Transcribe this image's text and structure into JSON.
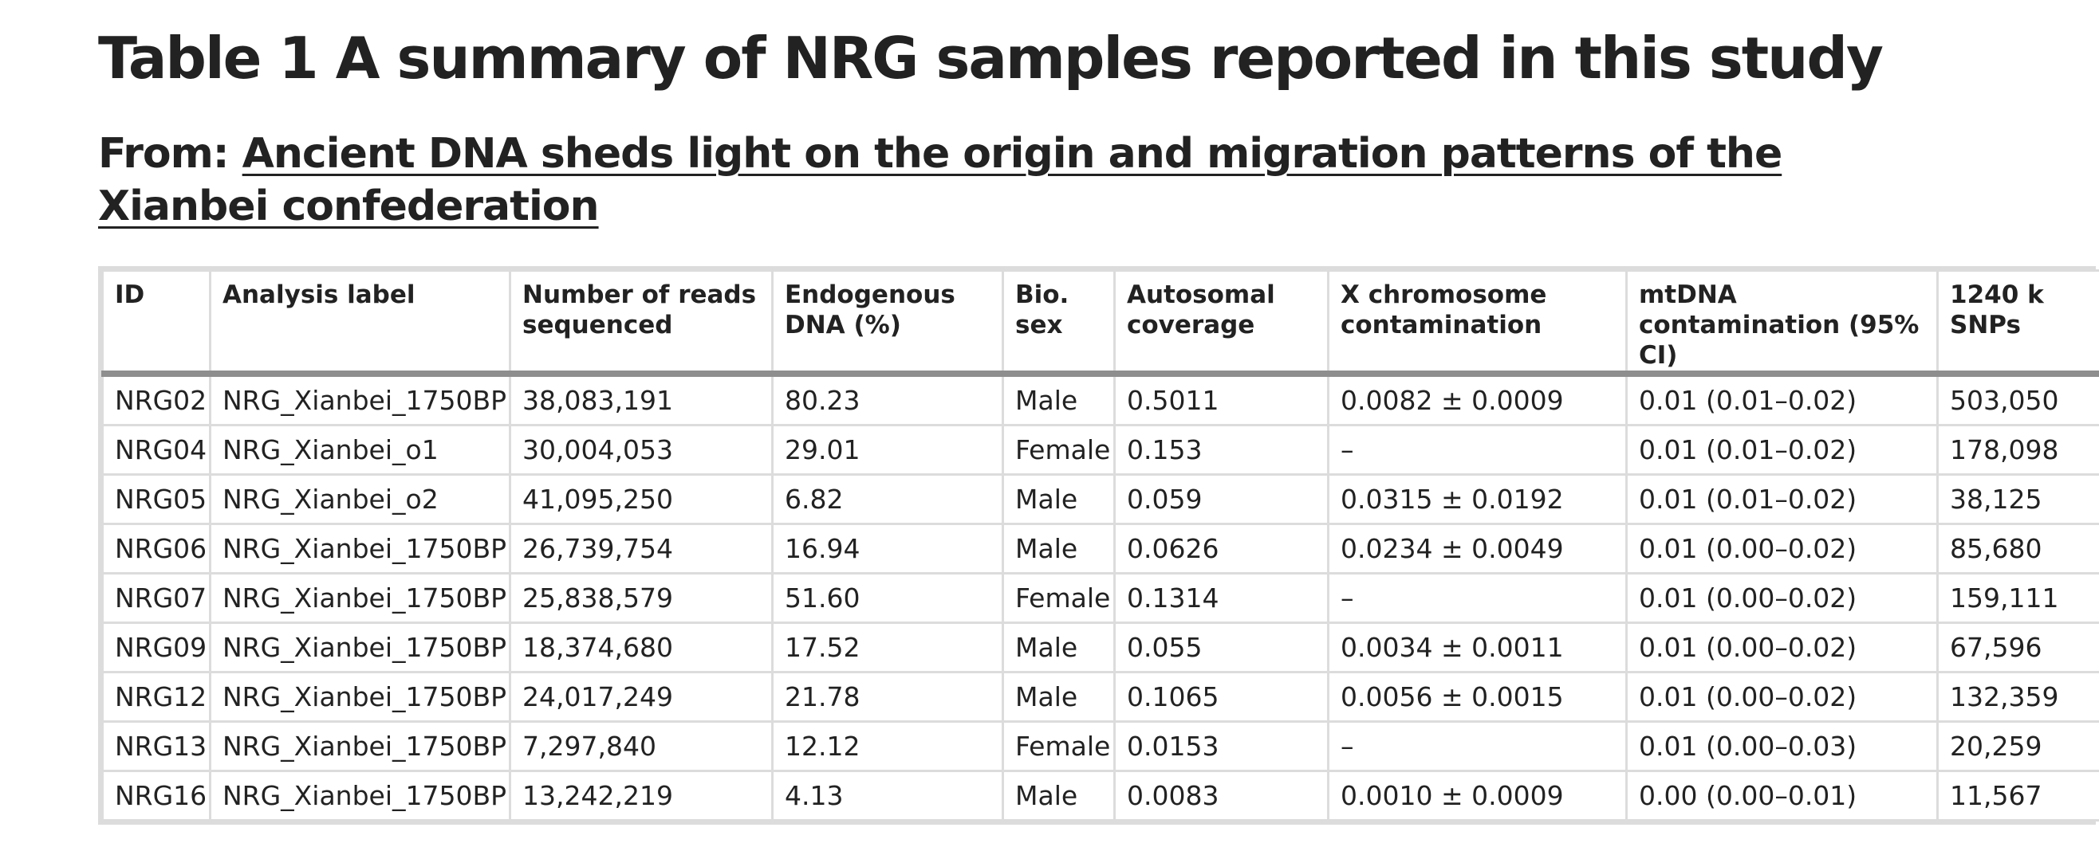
{
  "title": "Table 1 A summary of NRG samples reported in this study",
  "from_prefix": "From: ",
  "from_link": "Ancient DNA sheds light on the origin and migration patterns of the Xianbei confederation",
  "table": {
    "headers": [
      "ID",
      "Analysis label",
      "Number of reads sequenced",
      "Endogenous DNA (%)",
      "Bio. sex",
      "Autosomal coverage",
      "X chromosome contamination",
      "mtDNA contamination (95% CI)",
      "1240 k SNPs"
    ],
    "rows": [
      [
        "NRG02",
        "NRG_Xianbei_1750BP",
        "38,083,191",
        "80.23",
        "Male",
        "0.5011",
        "0.0082 ± 0.0009",
        "0.01 (0.01–0.02)",
        "503,050"
      ],
      [
        "NRG04",
        "NRG_Xianbei_o1",
        "30,004,053",
        "29.01",
        "Female",
        "0.153",
        "–",
        "0.01 (0.01–0.02)",
        "178,098"
      ],
      [
        "NRG05",
        "NRG_Xianbei_o2",
        "41,095,250",
        "6.82",
        "Male",
        "0.059",
        "0.0315 ± 0.0192",
        "0.01 (0.01–0.02)",
        "38,125"
      ],
      [
        "NRG06",
        "NRG_Xianbei_1750BP",
        "26,739,754",
        "16.94",
        "Male",
        "0.0626",
        "0.0234 ± 0.0049",
        "0.01 (0.00–0.02)",
        "85,680"
      ],
      [
        "NRG07",
        "NRG_Xianbei_1750BP",
        "25,838,579",
        "51.60",
        "Female",
        "0.1314",
        "–",
        "0.01 (0.00–0.02)",
        "159,111"
      ],
      [
        "NRG09",
        "NRG_Xianbei_1750BP",
        "18,374,680",
        "17.52",
        "Male",
        "0.055",
        "0.0034 ± 0.0011",
        "0.01 (0.00–0.02)",
        "67,596"
      ],
      [
        "NRG12",
        "NRG_Xianbei_1750BP",
        "24,017,249",
        "21.78",
        "Male",
        "0.1065",
        "0.0056 ± 0.0015",
        "0.01 (0.00–0.02)",
        "132,359"
      ],
      [
        "NRG13",
        "NRG_Xianbei_1750BP",
        "7,297,840",
        "12.12",
        "Female",
        "0.0153",
        "–",
        "0.01 (0.00–0.03)",
        "20,259"
      ],
      [
        "NRG16",
        "NRG_Xianbei_1750BP",
        "13,242,219",
        "4.13",
        "Male",
        "0.0083",
        "0.0010 ± 0.0009",
        "0.00 (0.00–0.01)",
        "11,567"
      ]
    ]
  }
}
